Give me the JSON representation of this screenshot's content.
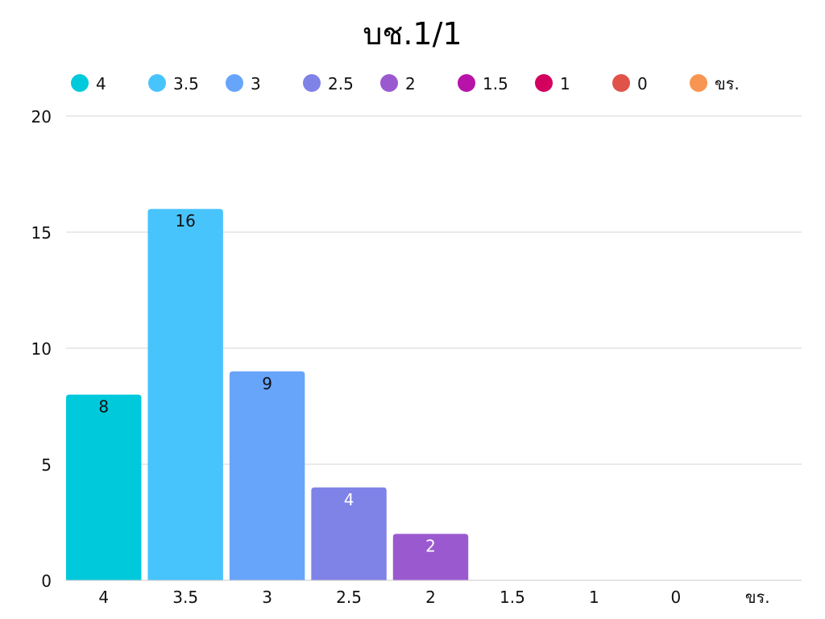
{
  "chart_data": {
    "type": "bar",
    "title": "บช.1/1",
    "categories": [
      "4",
      "3.5",
      "3",
      "2.5",
      "2",
      "1.5",
      "1",
      "0",
      "ขร."
    ],
    "values": [
      8,
      16,
      9,
      4,
      2,
      0,
      0,
      0,
      0
    ],
    "colors": [
      "#00c9dc",
      "#48c4fd",
      "#67a5fb",
      "#7f82e6",
      "#9b59d0",
      "#b713a8",
      "#d3005f",
      "#e0534a",
      "#f89553"
    ],
    "data_labels": [
      "8",
      "16",
      "9",
      "4",
      "2",
      "",
      "",
      "",
      ""
    ],
    "legend": {
      "placement": "top",
      "entries": [
        "4",
        "3.5",
        "3",
        "2.5",
        "2",
        "1.5",
        "1",
        "0",
        "ขร."
      ]
    },
    "y_ticks": [
      "0",
      "5",
      "10",
      "15",
      "20"
    ],
    "ylim": [
      0,
      20
    ],
    "grid": true,
    "xlabel": "",
    "ylabel": ""
  }
}
